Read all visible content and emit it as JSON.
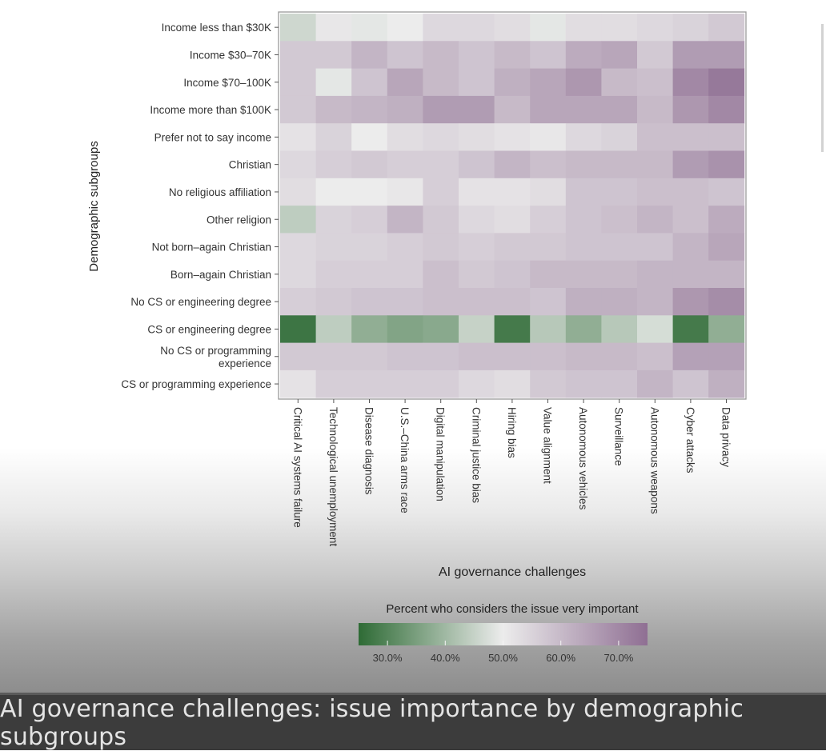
{
  "chart_data": {
    "type": "heatmap",
    "title": "",
    "xlabel": "AI governance challenges",
    "ylabel": "Demographic subgroups",
    "rows": [
      "Income less than $30K",
      "Income $30–70K",
      "Income $70–100K",
      "Income more than $100K",
      "Prefer not to say income",
      "Christian",
      "No religious affiliation",
      "Other religion",
      "Not born–again Christian",
      "Born–again Christian",
      "No CS or engineering degree",
      "CS or engineering degree",
      "No CS or programming experience",
      "CS or programming experience"
    ],
    "columns": [
      "Critical AI systems failure",
      "Technological unemployment",
      "Disease diagnosis",
      "U.S.–China arms race",
      "Digital manipulation",
      "Criminal justice bias",
      "Hiring bias",
      "Value alignment",
      "Autonomous vehicles",
      "Surveillance",
      "Autonomous weapons",
      "Cyber attacks",
      "Data privacy"
    ],
    "values": [
      [
        46,
        51,
        49,
        50,
        54,
        54,
        53,
        49,
        53,
        53,
        54,
        55,
        57
      ],
      [
        57,
        57,
        61,
        58,
        60,
        58,
        60,
        58,
        63,
        64,
        57,
        66,
        66
      ],
      [
        57,
        49,
        58,
        64,
        60,
        58,
        62,
        64,
        67,
        60,
        59,
        70,
        73
      ],
      [
        57,
        60,
        61,
        62,
        66,
        66,
        60,
        64,
        64,
        64,
        60,
        67,
        70
      ],
      [
        52,
        55,
        50,
        53,
        54,
        53,
        52,
        51,
        54,
        55,
        59,
        59,
        59
      ],
      [
        54,
        56,
        57,
        56,
        56,
        58,
        61,
        59,
        60,
        60,
        60,
        66,
        68
      ],
      [
        53,
        50,
        50,
        51,
        56,
        52,
        52,
        53,
        58,
        58,
        59,
        59,
        58
      ],
      [
        44,
        55,
        56,
        61,
        57,
        54,
        53,
        56,
        58,
        59,
        61,
        59,
        63
      ],
      [
        54,
        55,
        55,
        56,
        57,
        56,
        57,
        57,
        58,
        58,
        58,
        61,
        64
      ],
      [
        54,
        56,
        56,
        56,
        59,
        57,
        58,
        60,
        60,
        60,
        61,
        61,
        61
      ],
      [
        56,
        57,
        58,
        58,
        59,
        59,
        59,
        58,
        62,
        62,
        61,
        67,
        69
      ],
      [
        27,
        44,
        38,
        36,
        37,
        45,
        28,
        43,
        38,
        43,
        47,
        28,
        38
      ],
      [
        57,
        57,
        57,
        58,
        58,
        59,
        59,
        59,
        60,
        60,
        59,
        65,
        65
      ],
      [
        52,
        56,
        56,
        56,
        56,
        54,
        53,
        57,
        58,
        58,
        61,
        58,
        62
      ]
    ],
    "legend": {
      "title": "Percent who considers the issue very important",
      "ticks": [
        "30.0%",
        "40.0%",
        "50.0%",
        "60.0%",
        "70.0%"
      ],
      "tick_values": [
        30,
        40,
        50,
        60,
        70
      ],
      "range": [
        25,
        75
      ],
      "low_color": "#2e6b35",
      "mid_color": "#ececec",
      "high_color": "#8f6f93",
      "placement": "bottom-center"
    }
  },
  "caption": "AI governance challenges: issue importance by demographic subgroups"
}
